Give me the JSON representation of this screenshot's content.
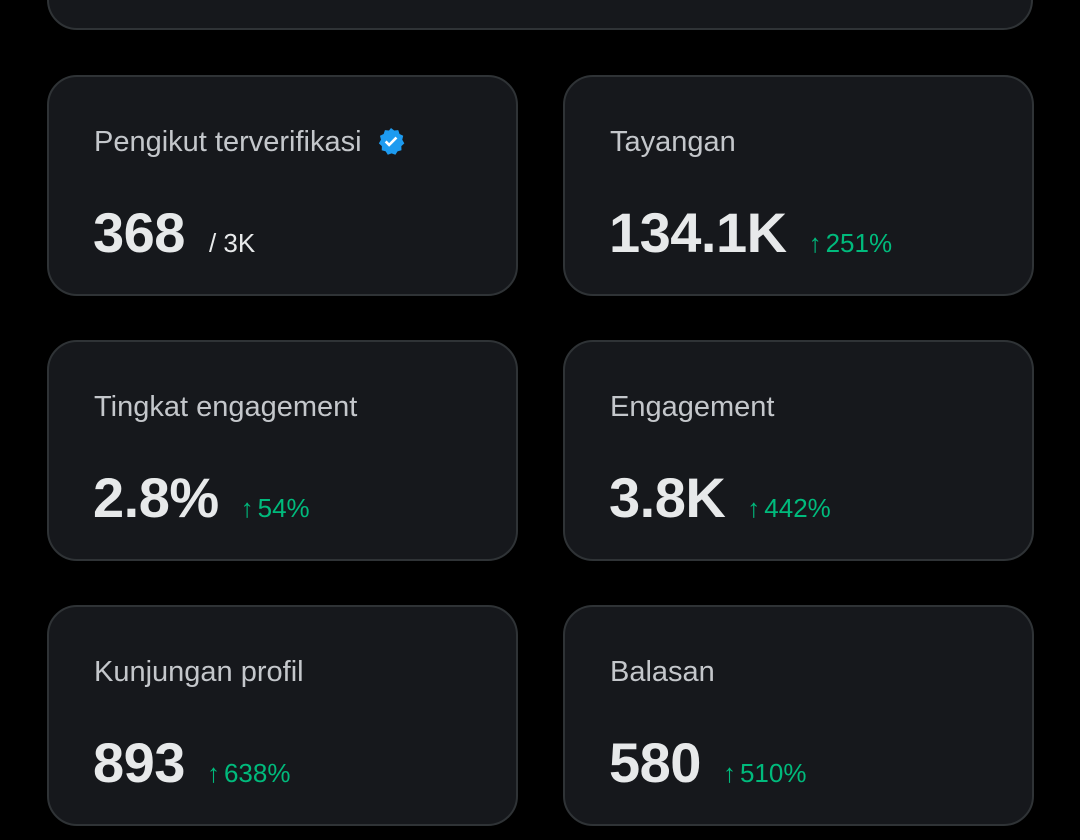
{
  "colors": {
    "background": "#000000",
    "card": "#16181c",
    "card_border": "#2f3336",
    "label": "#c4c7cb",
    "value": "#e7e9ea",
    "positive": "#00ba7c",
    "verified": "#1d9bf0"
  },
  "cards": [
    {
      "label": "Pengikut terverifikasi",
      "value": "368",
      "sub": "/ 3K",
      "icon": "verified-badge-icon"
    },
    {
      "label": "Tayangan",
      "value": "134.1K",
      "arrow": "↑",
      "delta": "251%"
    },
    {
      "label": "Tingkat engagement",
      "value": "2.8%",
      "arrow": "↑",
      "delta": "54%"
    },
    {
      "label": "Engagement",
      "value": "3.8K",
      "arrow": "↑",
      "delta": "442%"
    },
    {
      "label": "Kunjungan profil",
      "value": "893",
      "arrow": "↑",
      "delta": "638%"
    },
    {
      "label": "Balasan",
      "value": "580",
      "arrow": "↑",
      "delta": "510%"
    }
  ]
}
